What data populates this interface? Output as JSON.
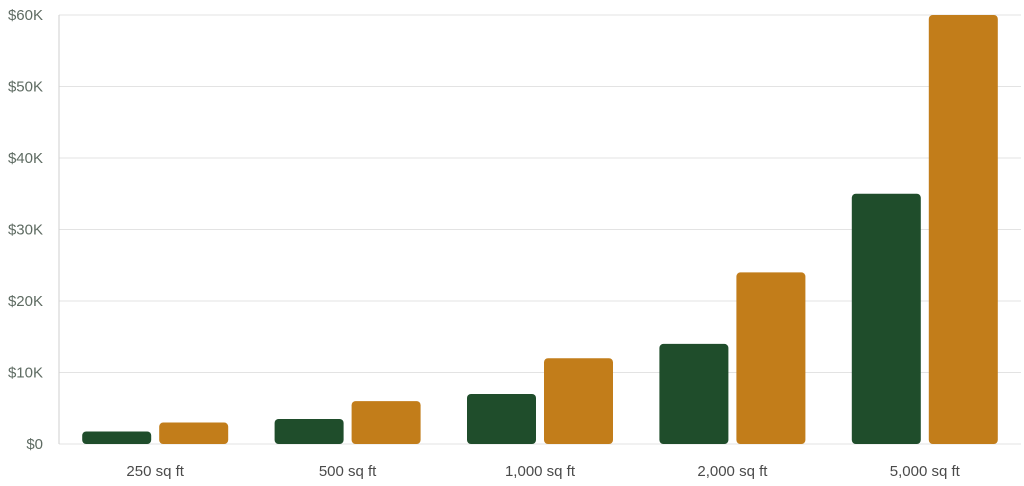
{
  "chart_data": {
    "type": "bar",
    "categories": [
      "250 sq ft",
      "500 sq ft",
      "1,000 sq ft",
      "2,000 sq ft",
      "5,000 sq ft"
    ],
    "series": [
      {
        "color": "#1f4d2b",
        "values": [
          1750,
          3500,
          7000,
          14000,
          35000
        ]
      },
      {
        "color": "#c27d1a",
        "values": [
          3000,
          6000,
          12000,
          24000,
          60000
        ]
      }
    ],
    "ylim": [
      0,
      60000
    ],
    "yticks": [
      0,
      10000,
      20000,
      30000,
      40000,
      50000,
      60000
    ],
    "ytick_labels": [
      "$0",
      "$10K",
      "$20K",
      "$30K",
      "$40K",
      "$50K",
      "$60K"
    ],
    "title": "",
    "xlabel": "",
    "ylabel": "",
    "grid": "horizontal",
    "legend": "none"
  }
}
